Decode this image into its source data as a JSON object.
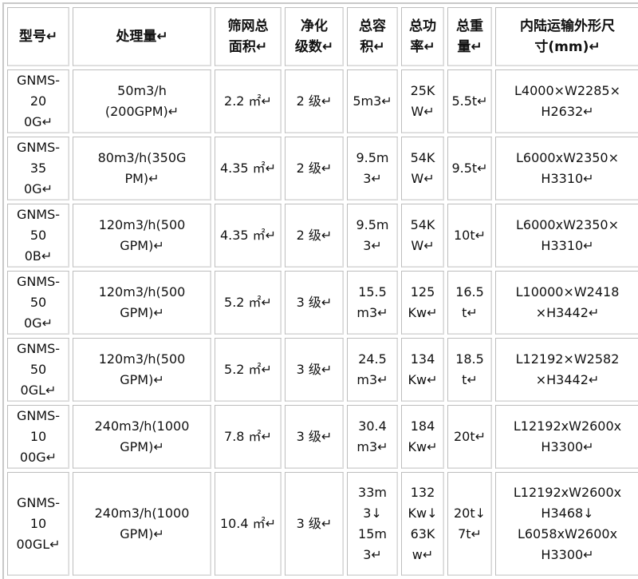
{
  "table": {
    "headers": [
      "型号↵",
      "处理量↵",
      "筛网总\n面积↵",
      "净化\n级数↵",
      "总容\n积↵",
      "总功\n率↵",
      "总重\n量↵",
      "内陆运输外形尺\n寸(mm)↵"
    ],
    "rows": [
      [
        "GNMS-20\n0G↵",
        "50m3/h\n(200GPM)↵",
        "2.2 ㎡↵",
        "2 级↵",
        "5m3↵",
        "25K\nW↵",
        "5.5t↵",
        "L4000×W2285×\nH2632↵"
      ],
      [
        "GNMS-35\n0G↵",
        "80m3/h(350G\nPM)↵",
        "4.35 ㎡↵",
        "2 级↵",
        "9.5m\n3↵",
        "54K\nW↵",
        "9.5t↵",
        "L6000xW2350×\nH3310↵"
      ],
      [
        "GNMS-50\n0B↵",
        "120m3/h(500\nGPM)↵",
        "4.35 ㎡↵",
        "2 级↵",
        "9.5m\n3↵",
        "54K\nW↵",
        "10t↵",
        "L6000xW2350×\nH3310↵"
      ],
      [
        "GNMS-50\n0G↵",
        "120m3/h(500\nGPM)↵",
        "5.2 ㎡↵",
        "3 级↵",
        "15.5\nm3↵",
        "125\nKw↵",
        "16.5\nt↵",
        "L10000×W2418\n×H3442↵"
      ],
      [
        "GNMS-50\n0GL↵",
        "120m3/h(500\nGPM)↵",
        "5.2 ㎡↵",
        "3 级↵",
        "24.5\nm3↵",
        "134\nKw↵",
        "18.5\nt↵",
        "L12192×W2582\n×H3442↵"
      ],
      [
        "GNMS-10\n00G↵",
        "240m3/h(1000\nGPM)↵",
        "7.8 ㎡↵",
        "3 级↵",
        "30.4\nm3↵",
        "184\nKw↵",
        "20t↵",
        "L12192xW2600x\nH3300↵"
      ],
      [
        "GNMS-10\n00GL↵",
        "240m3/h(1000\nGPM)↵",
        "10.4 ㎡↵",
        "3 级↵",
        "33m\n3↓\n15m\n3↵",
        "132\nKw↓\n63K\nw↵",
        "20t↓\n7t↵",
        "L12192xW2600x\nH3468↓\nL6058xW2600x\nH3300↵"
      ]
    ]
  }
}
